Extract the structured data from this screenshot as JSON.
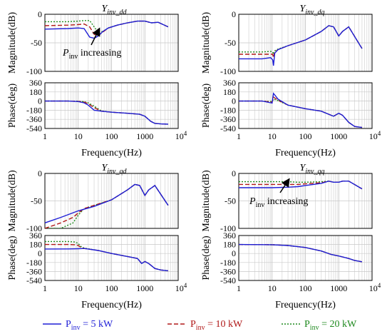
{
  "colors": {
    "p5": "#1f1fd6",
    "p10": "#b01818",
    "p20": "#1f8a1f"
  },
  "legend": [
    {
      "key": "p5",
      "label_pre": "P",
      "label_sub": "inv",
      "label_post": " =    5 kW",
      "style": "solid"
    },
    {
      "key": "p10",
      "label_pre": "P",
      "label_sub": "inv",
      "label_post": " = 10 kW",
      "style": "dashed"
    },
    {
      "key": "p20",
      "label_pre": "P",
      "label_sub": "inv",
      "label_post": " = 20 kW",
      "style": "dotted"
    }
  ],
  "chart_data": [
    {
      "id": "dd",
      "type": "line",
      "title_main": "Y",
      "title_sub": "inv_dd",
      "xlabel": "Frequency(Hz)",
      "xscale": "log",
      "xlim": [
        1,
        10000
      ],
      "xticks": [
        "1",
        "10",
        "100",
        "1000",
        "10⁴"
      ],
      "magnitude": {
        "ylabel": "Magnitude(dB)",
        "ylim": [
          -100,
          0
        ],
        "yticks": [
          0,
          -50,
          -100
        ],
        "annotation": {
          "pre": "P",
          "sub": "inv",
          "post": " increasing"
        },
        "series": [
          {
            "key": "p5",
            "x": [
              1,
              5,
              10,
              15,
              22,
              30,
              40,
              55,
              80,
              150,
              300,
              600,
              1000,
              1600,
              2500,
              5000
            ],
            "y": [
              -26,
              -25,
              -24,
              -25,
              -40,
              -42,
              -38,
              -30,
              -24,
              -19,
              -15,
              -12,
              -12,
              -15,
              -14,
              -22
            ]
          },
          {
            "key": "p10",
            "x": [
              1,
              5,
              10,
              15,
              22,
              30,
              40,
              55,
              80,
              150,
              300,
              600,
              1000,
              1600,
              2500,
              5000
            ],
            "y": [
              -20,
              -19,
              -18,
              -17,
              -22,
              -35,
              -37,
              -31,
              -24,
              -19,
              -15,
              -12,
              -12,
              -15,
              -14,
              -22
            ]
          },
          {
            "key": "p20",
            "x": [
              1,
              5,
              10,
              15,
              22,
              30,
              40,
              55,
              80,
              150,
              300,
              600,
              1000,
              1600,
              2500,
              5000
            ],
            "y": [
              -13,
              -13,
              -12,
              -11,
              -11,
              -22,
              -32,
              -30,
              -24,
              -19,
              -15,
              -12,
              -12,
              -15,
              -14,
              -22
            ]
          }
        ]
      },
      "phase": {
        "ylabel": "Phase(deg)",
        "ylim": [
          -540,
          360
        ],
        "yticks": [
          360,
          180,
          0,
          -180,
          -360,
          -540
        ],
        "series": [
          {
            "key": "p5",
            "x": [
              1,
              5,
              10,
              15,
              20,
              30,
              50,
              100,
              300,
              700,
              1000,
              1500,
              2000,
              3000,
              5000
            ],
            "y": [
              0,
              0,
              -10,
              -35,
              -80,
              -180,
              -200,
              -220,
              -240,
              -260,
              -300,
              -400,
              -440,
              -450,
              -455
            ]
          },
          {
            "key": "p10",
            "x": [
              1,
              5,
              10,
              15,
              20,
              30,
              50,
              100,
              300,
              700,
              1000,
              1500,
              2000,
              3000,
              5000
            ],
            "y": [
              0,
              0,
              -5,
              -20,
              -50,
              -130,
              -200,
              -220,
              -240,
              -260,
              -300,
              -400,
              -440,
              -450,
              -455
            ]
          },
          {
            "key": "p20",
            "x": [
              1,
              5,
              10,
              15,
              20,
              30,
              50,
              100,
              300,
              700,
              1000,
              1500,
              2000,
              3000,
              5000
            ],
            "y": [
              0,
              0,
              -3,
              -12,
              -35,
              -100,
              -195,
              -220,
              -240,
              -260,
              -300,
              -400,
              -440,
              -450,
              -455
            ]
          }
        ]
      }
    },
    {
      "id": "dq",
      "type": "line",
      "title_main": "Y",
      "title_sub": "inv_dq",
      "xlabel": "Frequency(Hz)",
      "xscale": "log",
      "xlim": [
        1,
        10000
      ],
      "xticks": [
        "1",
        "10",
        "100",
        "1000",
        "10⁴"
      ],
      "magnitude": {
        "ylabel": "Magnitude(dB)",
        "ylim": [
          -100,
          0
        ],
        "yticks": [
          0,
          -50,
          -100
        ],
        "series": [
          {
            "key": "p5",
            "x": [
              1,
              5,
              9,
              10.5,
              11,
              12,
              15,
              30,
              100,
              300,
              500,
              700,
              1000,
              1300,
              2000,
              5000
            ],
            "y": [
              -78,
              -78,
              -76,
              -80,
              -90,
              -68,
              -62,
              -55,
              -45,
              -30,
              -20,
              -22,
              -38,
              -30,
              -22,
              -60
            ]
          },
          {
            "key": "p10",
            "x": [
              1,
              5,
              9,
              10.5,
              11,
              12,
              15,
              30,
              100,
              300,
              500,
              700,
              1000,
              1300,
              2000,
              5000
            ],
            "y": [
              -70,
              -70,
              -70,
              -70,
              -76,
              -66,
              -62,
              -55,
              -45,
              -30,
              -20,
              -22,
              -38,
              -30,
              -22,
              -60
            ]
          },
          {
            "key": "p20",
            "x": [
              1,
              5,
              9,
              10.5,
              11,
              12,
              15,
              30,
              100,
              300,
              500,
              700,
              1000,
              1300,
              2000,
              5000
            ],
            "y": [
              -66,
              -66,
              -65,
              -66,
              -70,
              -64,
              -61,
              -55,
              -45,
              -30,
              -20,
              -22,
              -38,
              -30,
              -22,
              -60
            ]
          }
        ]
      },
      "phase": {
        "ylabel": "Phase(deg)",
        "ylim": [
          -540,
          360
        ],
        "yticks": [
          360,
          180,
          0,
          -180,
          -360,
          -540
        ],
        "series": [
          {
            "key": "p5",
            "x": [
              1,
              5,
              10,
              11,
              12,
              15,
              30,
              100,
              300,
              700,
              1000,
              1300,
              2000,
              3000,
              5000
            ],
            "y": [
              0,
              0,
              -40,
              150,
              120,
              40,
              -80,
              -150,
              -200,
              -300,
              -240,
              -280,
              -420,
              -500,
              -520
            ]
          },
          {
            "key": "p10",
            "x": [
              1,
              5,
              10,
              11,
              12,
              15,
              30,
              100,
              300,
              700,
              1000,
              1300,
              2000,
              3000,
              5000
            ],
            "y": [
              0,
              0,
              -20,
              80,
              60,
              20,
              -80,
              -150,
              -200,
              -300,
              -240,
              -280,
              -420,
              -500,
              -520
            ]
          },
          {
            "key": "p20",
            "x": [
              1,
              5,
              10,
              11,
              12,
              15,
              30,
              100,
              300,
              700,
              1000,
              1300,
              2000,
              3000,
              5000
            ],
            "y": [
              0,
              0,
              -10,
              40,
              30,
              10,
              -80,
              -150,
              -200,
              -300,
              -240,
              -280,
              -420,
              -500,
              -520
            ]
          }
        ]
      }
    },
    {
      "id": "qd",
      "type": "line",
      "title_main": "Y",
      "title_sub": "inv_qd",
      "xlabel": "Frequency(Hz)",
      "xscale": "log",
      "xlim": [
        1,
        10000
      ],
      "xticks": [
        "1",
        "10",
        "100",
        "1000",
        "10⁴"
      ],
      "magnitude": {
        "ylabel": "Magnitude(dB)",
        "ylim": [
          -100,
          0
        ],
        "yticks": [
          0,
          -50,
          -100
        ],
        "series": [
          {
            "key": "p5",
            "x": [
              1,
              3,
              10,
              30,
              100,
              300,
              500,
              700,
              1000,
              1300,
              2000,
              5000
            ],
            "y": [
              -90,
              -80,
              -68,
              -60,
              -48,
              -30,
              -20,
              -22,
              -40,
              -30,
              -22,
              -58
            ]
          },
          {
            "key": "p10",
            "x": [
              1,
              3,
              7,
              10,
              15,
              30,
              100,
              300,
              500,
              700,
              1000,
              1300,
              2000,
              5000
            ],
            "y": [
              -100,
              -90,
              -80,
              -72,
              -64,
              -58,
              -48,
              -30,
              -20,
              -22,
              -40,
              -30,
              -22,
              -58
            ]
          },
          {
            "key": "p20",
            "x": [
              1,
              3,
              7,
              10,
              15,
              30,
              100,
              300,
              500,
              700,
              1000,
              1300,
              2000,
              5000
            ],
            "y": [
              -100,
              -100,
              -90,
              -76,
              -64,
              -58,
              -48,
              -30,
              -20,
              -22,
              -40,
              -30,
              -22,
              -58
            ]
          }
        ]
      },
      "phase": {
        "ylabel": "Phase(deg)",
        "ylim": [
          -540,
          360
        ],
        "yticks": [
          360,
          180,
          0,
          -180,
          -360,
          -540
        ],
        "series": [
          {
            "key": "p5",
            "x": [
              1,
              5,
              10,
              15,
              20,
              40,
              100,
              300,
              600,
              800,
              1000,
              1300,
              2000,
              3000,
              5000
            ],
            "y": [
              90,
              92,
              96,
              100,
              90,
              60,
              0,
              -60,
              -100,
              -200,
              -160,
              -200,
              -300,
              -330,
              -345
            ]
          },
          {
            "key": "p10",
            "x": [
              1,
              5,
              8,
              10,
              12,
              15,
              20,
              40,
              100,
              300,
              600,
              800,
              1000,
              1300,
              2000,
              3000,
              5000
            ],
            "y": [
              180,
              180,
              175,
              160,
              120,
              100,
              90,
              60,
              0,
              -60,
              -100,
              -200,
              -160,
              -200,
              -300,
              -330,
              -345
            ]
          },
          {
            "key": "p20",
            "x": [
              1,
              5,
              8,
              10,
              12,
              15,
              20,
              40,
              100,
              300,
              600,
              800,
              1000,
              1300,
              2000,
              3000,
              5000
            ],
            "y": [
              240,
              240,
              230,
              200,
              140,
              110,
              95,
              60,
              0,
              -60,
              -100,
              -200,
              -160,
              -200,
              -300,
              -330,
              -345
            ]
          }
        ]
      }
    },
    {
      "id": "qq",
      "type": "line",
      "title_main": "Y",
      "title_sub": "inv_qq",
      "xlabel": "Frequency(Hz)",
      "xscale": "log",
      "xlim": [
        1,
        10000
      ],
      "xticks": [
        "1",
        "10",
        "100",
        "1000",
        "10⁴"
      ],
      "magnitude": {
        "ylabel": "Magnitude(dB)",
        "ylim": [
          -100,
          0
        ],
        "yticks": [
          0,
          -50,
          -100
        ],
        "annotation": {
          "pre": "P",
          "sub": "inv",
          "post": " increasing"
        },
        "series": [
          {
            "key": "p5",
            "x": [
              1,
              10,
              30,
              60,
              100,
              300,
              500,
              700,
              1000,
              1300,
              2000,
              5000
            ],
            "y": [
              -26,
              -26,
              -25,
              -24,
              -22,
              -18,
              -14,
              -16,
              -16,
              -14,
              -14,
              -28
            ]
          },
          {
            "key": "p10",
            "x": [
              1,
              10,
              30,
              60,
              100,
              300,
              500,
              700,
              1000,
              1300,
              2000,
              5000
            ],
            "y": [
              -20,
              -20,
              -20,
              -20,
              -19,
              -17,
              -14,
              -16,
              -16,
              -14,
              -14,
              -28
            ]
          },
          {
            "key": "p20",
            "x": [
              1,
              10,
              30,
              60,
              100,
              300,
              500,
              700,
              1000,
              1300,
              2000,
              5000
            ],
            "y": [
              -15,
              -15,
              -15,
              -16,
              -16,
              -15,
              -14,
              -16,
              -16,
              -14,
              -14,
              -28
            ]
          }
        ]
      },
      "phase": {
        "ylabel": "Phase(deg)",
        "ylim": [
          -540,
          360
        ],
        "yticks": [
          360,
          180,
          0,
          -180,
          -360,
          -540
        ],
        "series": [
          {
            "key": "p5",
            "x": [
              1,
              10,
              30,
              100,
              300,
              600,
              1000,
              2000,
              3000,
              5000
            ],
            "y": [
              180,
              175,
              160,
              120,
              50,
              -20,
              -50,
              -100,
              -140,
              -165
            ]
          },
          {
            "key": "p10",
            "x": [
              1,
              10,
              30,
              100,
              300,
              600,
              1000,
              2000,
              3000,
              5000
            ],
            "y": [
              180,
              175,
              160,
              120,
              50,
              -20,
              -50,
              -100,
              -140,
              -165
            ]
          },
          {
            "key": "p20",
            "x": [
              1,
              10,
              30,
              100,
              300,
              600,
              1000,
              2000,
              3000,
              5000
            ],
            "y": [
              180,
              175,
              160,
              120,
              50,
              -20,
              -50,
              -100,
              -140,
              -165
            ]
          }
        ]
      }
    }
  ]
}
